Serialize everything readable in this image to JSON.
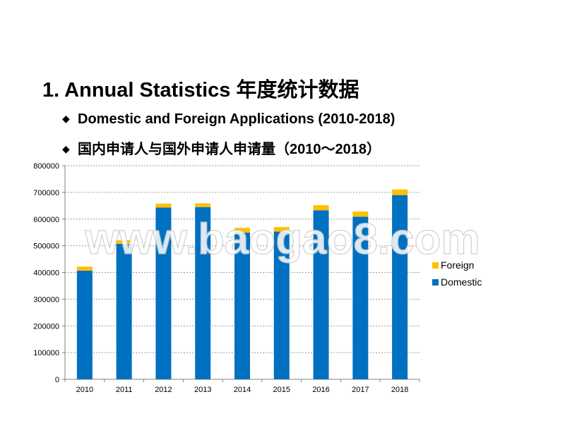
{
  "slide": {
    "title": "1.  Annual Statistics 年度统计数据",
    "bullets": [
      "Domestic and Foreign Applications (2010-2018)",
      "国内申请人与国外申请人申请量（2010～2018）"
    ],
    "watermark": "www.baogao8.com"
  },
  "chart_data": {
    "type": "bar",
    "stacked": true,
    "categories": [
      "2010",
      "2011",
      "2012",
      "2013",
      "2014",
      "2015",
      "2016",
      "2017",
      "2018"
    ],
    "series": [
      {
        "name": "Domestic",
        "color": "#0070c0",
        "values": [
          407000,
          507000,
          643000,
          645000,
          549000,
          553000,
          633000,
          609000,
          690000
        ]
      },
      {
        "name": "Foreign",
        "color": "#ffc000",
        "values": [
          15000,
          14000,
          15000,
          14000,
          18000,
          17000,
          19000,
          19000,
          21000
        ]
      }
    ],
    "ylim": [
      0,
      800000
    ],
    "yticks": [
      "0",
      "100000",
      "200000",
      "300000",
      "400000",
      "500000",
      "600000",
      "700000",
      "800000"
    ],
    "grid": true,
    "legend": {
      "position": "right",
      "items": [
        "Foreign",
        "Domestic"
      ]
    }
  }
}
